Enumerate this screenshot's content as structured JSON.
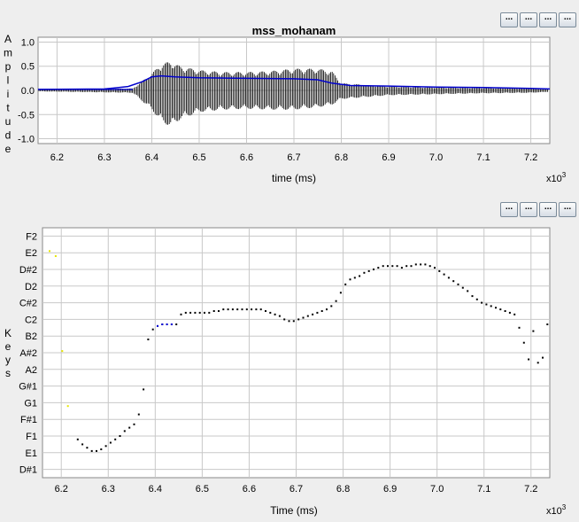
{
  "toolbar_top": {
    "buttons": [
      "...",
      "...",
      "...",
      "..."
    ]
  },
  "toolbar_bottom": {
    "buttons": [
      "...",
      "...",
      "...",
      "..."
    ]
  },
  "chart_data": [
    {
      "type": "line",
      "title": "mss_mohanam",
      "xlabel": "time (ms)",
      "ylabel": "Amplitude",
      "x_exponent_label": "x10",
      "x_exponent": "3",
      "xlim": [
        6.16,
        7.24
      ],
      "ylim": [
        -1.1,
        1.1
      ],
      "xticks": [
        "6.2",
        "6.3",
        "6.4",
        "6.5",
        "6.6",
        "6.7",
        "6.8",
        "6.9",
        "7.0",
        "7.1",
        "7.2"
      ],
      "xtick_values": [
        6.2,
        6.3,
        6.4,
        6.5,
        6.6,
        6.7,
        6.8,
        6.9,
        7.0,
        7.1,
        7.2
      ],
      "yticks": [
        "1.0",
        "0.5",
        "0.0",
        "-0.5",
        "-1.0"
      ],
      "ytick_values": [
        1.0,
        0.5,
        0.0,
        -0.5,
        -1.0
      ],
      "grid": true,
      "waveform_envelope": {
        "x": [
          6.16,
          6.36,
          6.4,
          6.42,
          6.44,
          6.46,
          6.5,
          6.55,
          6.6,
          6.65,
          6.7,
          6.75,
          6.78,
          6.8,
          6.9,
          7.0,
          7.1,
          7.2,
          7.24
        ],
        "max": [
          0.02,
          0.04,
          0.35,
          0.55,
          0.6,
          0.5,
          0.42,
          0.38,
          0.38,
          0.4,
          0.45,
          0.45,
          0.4,
          0.15,
          0.08,
          0.06,
          0.05,
          0.04,
          0.02
        ],
        "min": [
          -0.02,
          -0.05,
          -0.4,
          -0.65,
          -0.75,
          -0.6,
          -0.45,
          -0.4,
          -0.38,
          -0.4,
          -0.4,
          -0.35,
          -0.3,
          -0.18,
          -0.1,
          -0.08,
          -0.06,
          -0.05,
          -0.03
        ]
      },
      "envelope_line": {
        "color": "#0000cc",
        "x": [
          6.16,
          6.3,
          6.35,
          6.38,
          6.4,
          6.42,
          6.45,
          6.5,
          6.6,
          6.7,
          6.75,
          6.78,
          6.82,
          6.9,
          7.0,
          7.1,
          7.2,
          7.24
        ],
        "y": [
          0.02,
          0.03,
          0.08,
          0.18,
          0.28,
          0.3,
          0.28,
          0.26,
          0.25,
          0.24,
          0.22,
          0.15,
          0.1,
          0.09,
          0.07,
          0.06,
          0.04,
          0.03
        ]
      }
    },
    {
      "type": "scatter",
      "xlabel": "Time (ms)",
      "ylabel": "Keys",
      "x_exponent_label": "x10",
      "x_exponent": "3",
      "xlim": [
        6.16,
        7.24
      ],
      "ylim": [
        -0.5,
        14.5
      ],
      "xticks": [
        "6.2",
        "6.3",
        "6.4",
        "6.5",
        "6.6",
        "6.7",
        "6.8",
        "6.9",
        "7.0",
        "7.1",
        "7.2"
      ],
      "xtick_values": [
        6.2,
        6.3,
        6.4,
        6.5,
        6.6,
        6.7,
        6.8,
        6.9,
        7.0,
        7.1,
        7.2
      ],
      "yticks": [
        "D#1",
        "E1",
        "F1",
        "F#1",
        "G1",
        "G#1",
        "A2",
        "A#2",
        "B2",
        "C2",
        "C#2",
        "D2",
        "D#2",
        "E2",
        "F2"
      ],
      "grid": true,
      "points_black": {
        "x": [
          6.235,
          6.245,
          6.255,
          6.265,
          6.275,
          6.285,
          6.295,
          6.305,
          6.315,
          6.325,
          6.335,
          6.345,
          6.355,
          6.365,
          6.375,
          6.385,
          6.395,
          6.405,
          6.415,
          6.425,
          6.435,
          6.445,
          6.455,
          6.465,
          6.475,
          6.485,
          6.495,
          6.505,
          6.515,
          6.525,
          6.535,
          6.545,
          6.555,
          6.565,
          6.575,
          6.585,
          6.595,
          6.605,
          6.615,
          6.625,
          6.635,
          6.645,
          6.655,
          6.665,
          6.675,
          6.685,
          6.695,
          6.705,
          6.715,
          6.725,
          6.735,
          6.745,
          6.755,
          6.765,
          6.775,
          6.785,
          6.795,
          6.805,
          6.815,
          6.825,
          6.835,
          6.845,
          6.855,
          6.865,
          6.875,
          6.885,
          6.895,
          6.905,
          6.915,
          6.925,
          6.935,
          6.945,
          6.955,
          6.965,
          6.975,
          6.985,
          6.995,
          7.005,
          7.015,
          7.025,
          7.035,
          7.045,
          7.055,
          7.065,
          7.075,
          7.085,
          7.095,
          7.105,
          7.115,
          7.125,
          7.135,
          7.145,
          7.155,
          7.165,
          7.175,
          7.185,
          7.195,
          7.205,
          7.215,
          7.225,
          7.235
        ],
        "y": [
          1.8,
          1.5,
          1.3,
          1.1,
          1.1,
          1.2,
          1.4,
          1.6,
          1.8,
          2.0,
          2.3,
          2.5,
          2.7,
          3.3,
          4.8,
          7.8,
          8.4,
          8.6,
          8.7,
          8.7,
          8.7,
          8.7,
          9.3,
          9.4,
          9.4,
          9.4,
          9.4,
          9.4,
          9.4,
          9.5,
          9.5,
          9.6,
          9.6,
          9.6,
          9.6,
          9.6,
          9.6,
          9.6,
          9.6,
          9.6,
          9.5,
          9.4,
          9.3,
          9.2,
          9.0,
          8.9,
          8.9,
          9.0,
          9.1,
          9.2,
          9.3,
          9.4,
          9.5,
          9.6,
          9.8,
          10.1,
          10.6,
          11.1,
          11.4,
          11.5,
          11.6,
          11.8,
          11.9,
          12.0,
          12.1,
          12.2,
          12.2,
          12.2,
          12.2,
          12.1,
          12.2,
          12.2,
          12.3,
          12.3,
          12.3,
          12.2,
          12.1,
          11.9,
          11.7,
          11.5,
          11.3,
          11.1,
          10.9,
          10.7,
          10.4,
          10.2,
          10.0,
          9.9,
          9.8,
          9.7,
          9.6,
          9.5,
          9.4,
          9.3,
          8.5,
          7.6,
          6.6,
          8.3,
          6.4,
          6.7,
          8.7
        ],
        "color": "#000000"
      },
      "points_blue": {
        "x": [
          6.405,
          6.415,
          6.425,
          6.435
        ],
        "y": [
          8.6,
          8.7,
          8.7,
          8.7
        ],
        "color": "#0000dd"
      },
      "points_yellow": {
        "x": [
          6.175,
          6.188,
          6.202,
          6.214
        ],
        "y": [
          13.1,
          12.8,
          7.1,
          3.8
        ],
        "color": "#e6e600"
      }
    }
  ]
}
